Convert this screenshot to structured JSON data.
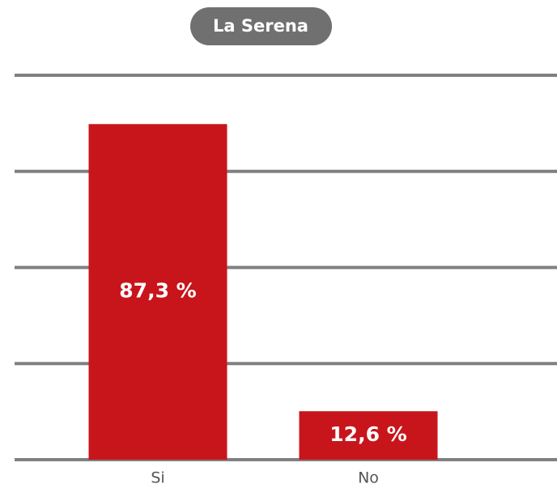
{
  "chart_data": {
    "type": "bar",
    "title": "La Serena",
    "categories": [
      "Si",
      "No"
    ],
    "values": [
      87.3,
      12.6
    ],
    "value_labels": [
      "87,3 %",
      "12,6 %"
    ],
    "color": "#c8151b",
    "ylim": [
      0,
      100
    ],
    "yticks": [
      0,
      25,
      50,
      75,
      100
    ],
    "grid": true
  }
}
